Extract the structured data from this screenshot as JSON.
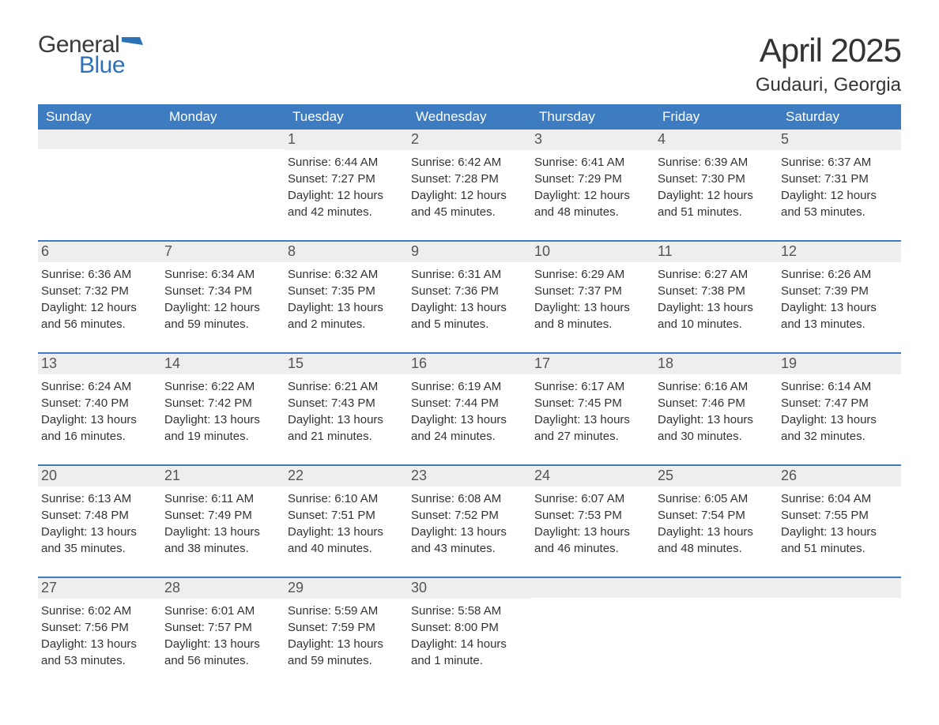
{
  "logo": {
    "text_general": "General",
    "text_blue": "Blue",
    "flag_color": "#2d72b7"
  },
  "title": {
    "month": "April 2025",
    "location": "Gudauri, Georgia"
  },
  "colors": {
    "header_bg": "#3d7cc0",
    "header_text": "#ffffff",
    "daynum_bg": "#eeeeee",
    "daynum_text": "#555555",
    "body_text": "#333333",
    "page_bg": "#ffffff",
    "week_border": "#3d7cc0"
  },
  "typography": {
    "month_title_fontsize": 42,
    "location_fontsize": 24,
    "weekday_fontsize": 17,
    "daynum_fontsize": 18,
    "body_fontsize": 15
  },
  "weekdays": [
    "Sunday",
    "Monday",
    "Tuesday",
    "Wednesday",
    "Thursday",
    "Friday",
    "Saturday"
  ],
  "weeks": [
    [
      {
        "day": "",
        "lines": []
      },
      {
        "day": "",
        "lines": []
      },
      {
        "day": "1",
        "lines": [
          "Sunrise: 6:44 AM",
          "Sunset: 7:27 PM",
          "Daylight: 12 hours and 42 minutes."
        ]
      },
      {
        "day": "2",
        "lines": [
          "Sunrise: 6:42 AM",
          "Sunset: 7:28 PM",
          "Daylight: 12 hours and 45 minutes."
        ]
      },
      {
        "day": "3",
        "lines": [
          "Sunrise: 6:41 AM",
          "Sunset: 7:29 PM",
          "Daylight: 12 hours and 48 minutes."
        ]
      },
      {
        "day": "4",
        "lines": [
          "Sunrise: 6:39 AM",
          "Sunset: 7:30 PM",
          "Daylight: 12 hours and 51 minutes."
        ]
      },
      {
        "day": "5",
        "lines": [
          "Sunrise: 6:37 AM",
          "Sunset: 7:31 PM",
          "Daylight: 12 hours and 53 minutes."
        ]
      }
    ],
    [
      {
        "day": "6",
        "lines": [
          "Sunrise: 6:36 AM",
          "Sunset: 7:32 PM",
          "Daylight: 12 hours and 56 minutes."
        ]
      },
      {
        "day": "7",
        "lines": [
          "Sunrise: 6:34 AM",
          "Sunset: 7:34 PM",
          "Daylight: 12 hours and 59 minutes."
        ]
      },
      {
        "day": "8",
        "lines": [
          "Sunrise: 6:32 AM",
          "Sunset: 7:35 PM",
          "Daylight: 13 hours and 2 minutes."
        ]
      },
      {
        "day": "9",
        "lines": [
          "Sunrise: 6:31 AM",
          "Sunset: 7:36 PM",
          "Daylight: 13 hours and 5 minutes."
        ]
      },
      {
        "day": "10",
        "lines": [
          "Sunrise: 6:29 AM",
          "Sunset: 7:37 PM",
          "Daylight: 13 hours and 8 minutes."
        ]
      },
      {
        "day": "11",
        "lines": [
          "Sunrise: 6:27 AM",
          "Sunset: 7:38 PM",
          "Daylight: 13 hours and 10 minutes."
        ]
      },
      {
        "day": "12",
        "lines": [
          "Sunrise: 6:26 AM",
          "Sunset: 7:39 PM",
          "Daylight: 13 hours and 13 minutes."
        ]
      }
    ],
    [
      {
        "day": "13",
        "lines": [
          "Sunrise: 6:24 AM",
          "Sunset: 7:40 PM",
          "Daylight: 13 hours and 16 minutes."
        ]
      },
      {
        "day": "14",
        "lines": [
          "Sunrise: 6:22 AM",
          "Sunset: 7:42 PM",
          "Daylight: 13 hours and 19 minutes."
        ]
      },
      {
        "day": "15",
        "lines": [
          "Sunrise: 6:21 AM",
          "Sunset: 7:43 PM",
          "Daylight: 13 hours and 21 minutes."
        ]
      },
      {
        "day": "16",
        "lines": [
          "Sunrise: 6:19 AM",
          "Sunset: 7:44 PM",
          "Daylight: 13 hours and 24 minutes."
        ]
      },
      {
        "day": "17",
        "lines": [
          "Sunrise: 6:17 AM",
          "Sunset: 7:45 PM",
          "Daylight: 13 hours and 27 minutes."
        ]
      },
      {
        "day": "18",
        "lines": [
          "Sunrise: 6:16 AM",
          "Sunset: 7:46 PM",
          "Daylight: 13 hours and 30 minutes."
        ]
      },
      {
        "day": "19",
        "lines": [
          "Sunrise: 6:14 AM",
          "Sunset: 7:47 PM",
          "Daylight: 13 hours and 32 minutes."
        ]
      }
    ],
    [
      {
        "day": "20",
        "lines": [
          "Sunrise: 6:13 AM",
          "Sunset: 7:48 PM",
          "Daylight: 13 hours and 35 minutes."
        ]
      },
      {
        "day": "21",
        "lines": [
          "Sunrise: 6:11 AM",
          "Sunset: 7:49 PM",
          "Daylight: 13 hours and 38 minutes."
        ]
      },
      {
        "day": "22",
        "lines": [
          "Sunrise: 6:10 AM",
          "Sunset: 7:51 PM",
          "Daylight: 13 hours and 40 minutes."
        ]
      },
      {
        "day": "23",
        "lines": [
          "Sunrise: 6:08 AM",
          "Sunset: 7:52 PM",
          "Daylight: 13 hours and 43 minutes."
        ]
      },
      {
        "day": "24",
        "lines": [
          "Sunrise: 6:07 AM",
          "Sunset: 7:53 PM",
          "Daylight: 13 hours and 46 minutes."
        ]
      },
      {
        "day": "25",
        "lines": [
          "Sunrise: 6:05 AM",
          "Sunset: 7:54 PM",
          "Daylight: 13 hours and 48 minutes."
        ]
      },
      {
        "day": "26",
        "lines": [
          "Sunrise: 6:04 AM",
          "Sunset: 7:55 PM",
          "Daylight: 13 hours and 51 minutes."
        ]
      }
    ],
    [
      {
        "day": "27",
        "lines": [
          "Sunrise: 6:02 AM",
          "Sunset: 7:56 PM",
          "Daylight: 13 hours and 53 minutes."
        ]
      },
      {
        "day": "28",
        "lines": [
          "Sunrise: 6:01 AM",
          "Sunset: 7:57 PM",
          "Daylight: 13 hours and 56 minutes."
        ]
      },
      {
        "day": "29",
        "lines": [
          "Sunrise: 5:59 AM",
          "Sunset: 7:59 PM",
          "Daylight: 13 hours and 59 minutes."
        ]
      },
      {
        "day": "30",
        "lines": [
          "Sunrise: 5:58 AM",
          "Sunset: 8:00 PM",
          "Daylight: 14 hours and 1 minute."
        ]
      },
      {
        "day": "",
        "lines": []
      },
      {
        "day": "",
        "lines": []
      },
      {
        "day": "",
        "lines": []
      }
    ]
  ]
}
